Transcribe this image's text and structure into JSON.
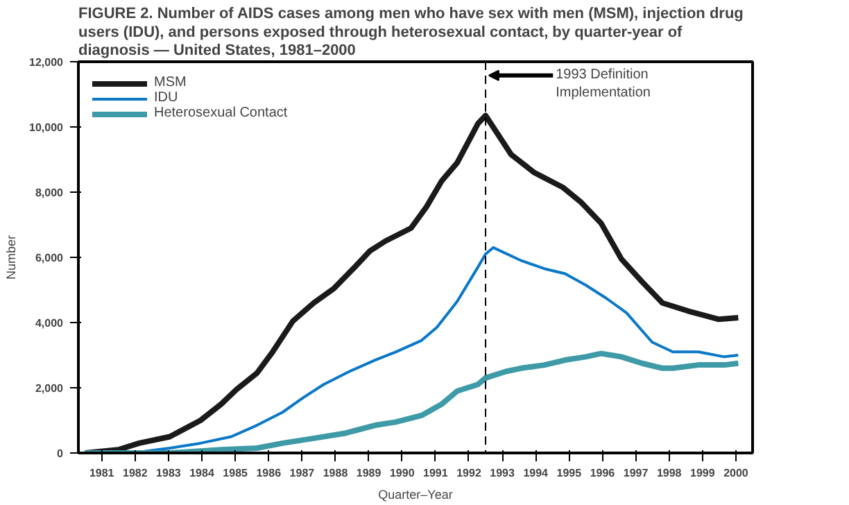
{
  "chart_data": {
    "type": "line",
    "title": "FIGURE 2. Number of AIDS cases among men who have sex with men (MSM), injection drug users (IDU), and persons exposed through heterosexual contact, by quarter-year of diagnosis — United States, 1981–2000",
    "xlabel": "Quarter–Year",
    "ylabel": "Number",
    "series": [
      {
        "name": "MSM",
        "color": "#1a1a1a",
        "x": [
          1981.0,
          1982.0,
          1982.62,
          1983.54,
          1984.46,
          1985.08,
          1985.54,
          1986.15,
          1986.62,
          1987.23,
          1987.85,
          1988.46,
          1989.08,
          1989.54,
          1990.0,
          1990.77,
          1991.23,
          1991.69,
          1992.15,
          1992.77,
          1993.0,
          1993.77,
          1994.46,
          1995.31,
          1995.85,
          1996.46,
          1997.07,
          1997.69,
          1998.3,
          1999.08,
          1999.99,
          2000.57
        ],
        "values": [
          0,
          100,
          300,
          500,
          1000,
          1500,
          1950,
          2450,
          3100,
          4050,
          4600,
          5050,
          5700,
          6200,
          6500,
          6900,
          7550,
          8350,
          8900,
          10100,
          10350,
          9150,
          8600,
          8150,
          7700,
          7050,
          5950,
          5250,
          4600,
          4350,
          4100,
          4150
        ]
      },
      {
        "name": "IDU",
        "color": "#0a78c8",
        "x": [
          1981.0,
          1982.77,
          1983.54,
          1984.46,
          1985.38,
          1986.15,
          1986.92,
          1987.54,
          1988.15,
          1988.92,
          1989.69,
          1990.31,
          1991.08,
          1991.54,
          1992.15,
          1992.77,
          1993.0,
          1993.23,
          1994.07,
          1994.77,
          1995.38,
          1996.0,
          1996.61,
          1997.22,
          1997.99,
          1998.61,
          1999.38,
          2000.15,
          2000.57
        ],
        "values": [
          0,
          50,
          150,
          300,
          500,
          850,
          1250,
          1700,
          2100,
          2500,
          2850,
          3100,
          3450,
          3850,
          4650,
          5700,
          6100,
          6300,
          5900,
          5650,
          5500,
          5150,
          4750,
          4300,
          3400,
          3100,
          3100,
          2950,
          3000
        ]
      },
      {
        "name": "Heterosexual Contact",
        "color": "#3d9aa6",
        "x": [
          1981.0,
          1983.54,
          1985.08,
          1986.15,
          1986.92,
          1987.85,
          1988.77,
          1989.69,
          1990.31,
          1991.08,
          1991.69,
          1992.15,
          1992.77,
          1993.0,
          1993.61,
          1994.07,
          1994.77,
          1995.38,
          1996.0,
          1996.46,
          1997.07,
          1997.69,
          1998.3,
          1998.61,
          1999.38,
          2000.15,
          2000.57
        ],
        "values": [
          0,
          0,
          100,
          150,
          300,
          450,
          600,
          850,
          950,
          1150,
          1500,
          1900,
          2100,
          2300,
          2500,
          2600,
          2700,
          2850,
          2950,
          3050,
          2950,
          2750,
          2600,
          2600,
          2700,
          2700,
          2750
        ]
      }
    ],
    "xlim": [
      1980.8,
      2001.0
    ],
    "xticks": [
      {
        "value": 1981.5,
        "label": "1981"
      },
      {
        "value": 1982.5,
        "label": "1982"
      },
      {
        "value": 1983.5,
        "label": "1983"
      },
      {
        "value": 1984.5,
        "label": "1984"
      },
      {
        "value": 1985.5,
        "label": "1985"
      },
      {
        "value": 1986.5,
        "label": "1986"
      },
      {
        "value": 1987.5,
        "label": "1987"
      },
      {
        "value": 1988.5,
        "label": "1988"
      },
      {
        "value": 1989.5,
        "label": "1989"
      },
      {
        "value": 1990.5,
        "label": "1990"
      },
      {
        "value": 1991.5,
        "label": "1991"
      },
      {
        "value": 1992.5,
        "label": "1992"
      },
      {
        "value": 1993.5,
        "label": "1993"
      },
      {
        "value": 1994.5,
        "label": "1994"
      },
      {
        "value": 1995.5,
        "label": "1995"
      },
      {
        "value": 1996.5,
        "label": "1996"
      },
      {
        "value": 1997.5,
        "label": "1997"
      },
      {
        "value": 1998.5,
        "label": "1998"
      },
      {
        "value": 1999.5,
        "label": "1999"
      },
      {
        "value": 2000.5,
        "label": "2000"
      }
    ],
    "ylim": [
      0,
      12000
    ],
    "yticks": [
      0,
      {
        "value": 2000,
        "label": "2,000"
      },
      {
        "value": 4000,
        "label": "4,000"
      },
      {
        "value": 6000,
        "label": "6,000"
      },
      {
        "value": 8000,
        "label": "8,000"
      },
      {
        "value": 10000,
        "label": "10,000"
      },
      {
        "value": 12000,
        "label": "12,000"
      }
    ],
    "ref_lines": [
      {
        "axis": "x",
        "value": 1993.0,
        "label": "1993 Definition Implementation",
        "line_style": "dashed",
        "color": "#000000"
      }
    ],
    "grid": false,
    "legend": "top left",
    "marker": "none",
    "line_style": "solid"
  }
}
